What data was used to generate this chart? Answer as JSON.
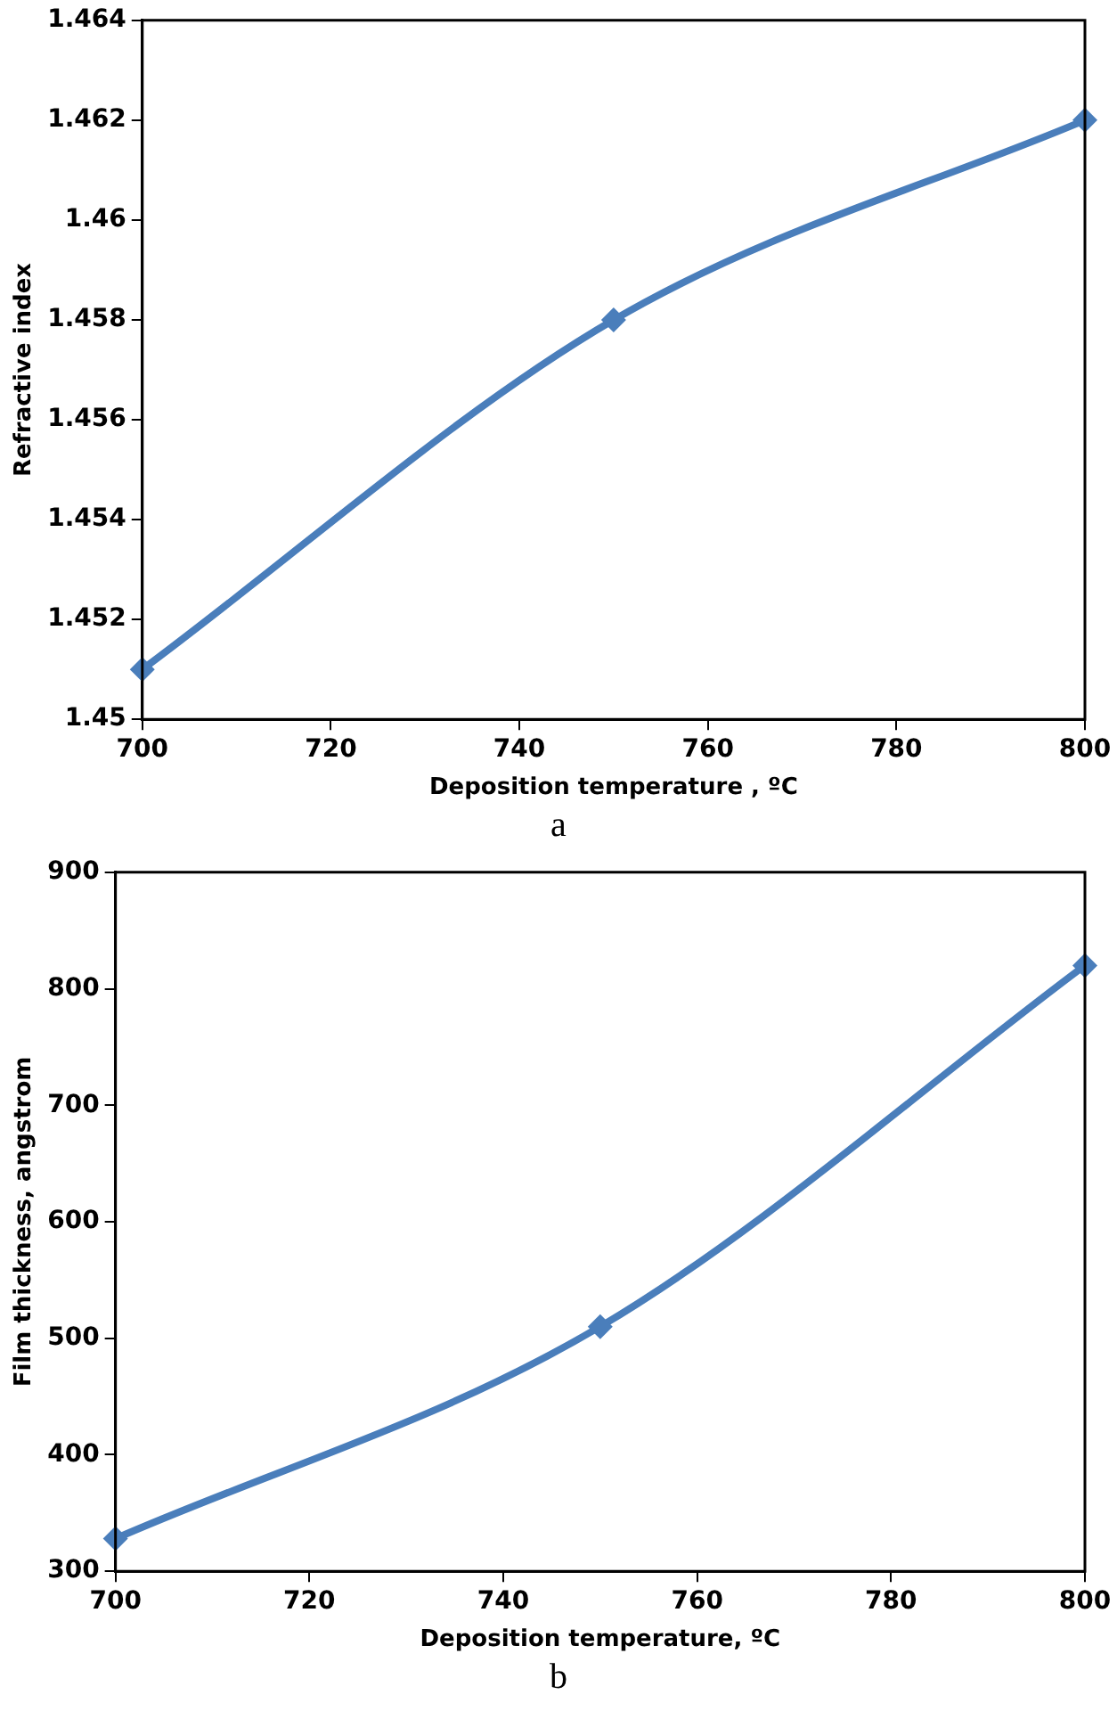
{
  "chart_data": [
    {
      "type": "line",
      "xlabel": "Deposition temperature , ºC",
      "ylabel": "Refractive index",
      "x": [
        700,
        750,
        800
      ],
      "series": [
        {
          "color": "#4a7ebb",
          "values": [
            1.451,
            1.458,
            1.462
          ]
        }
      ],
      "xlim": [
        700,
        800
      ],
      "xticks": [
        700,
        720,
        740,
        760,
        780,
        800
      ],
      "ylim": [
        1.45,
        1.464
      ],
      "yticks": [
        1.45,
        1.452,
        1.454,
        1.456,
        1.458,
        1.46,
        1.462,
        1.464
      ],
      "grid": false,
      "legend": false,
      "marker": "diamond",
      "line_style": "solid",
      "annotations": [
        "a"
      ]
    },
    {
      "type": "line",
      "xlabel": "Deposition temperature, ºC",
      "ylabel": "Film thickness, angstrom",
      "x": [
        700,
        750,
        800
      ],
      "series": [
        {
          "color": "#4a7ebb",
          "values": [
            328,
            510,
            820
          ]
        }
      ],
      "xlim": [
        700,
        800
      ],
      "xticks": [
        700,
        720,
        740,
        760,
        780,
        800
      ],
      "ylim": [
        300,
        900
      ],
      "yticks": [
        300,
        400,
        500,
        600,
        700,
        800,
        900
      ],
      "grid": false,
      "legend": false,
      "marker": "diamond",
      "line_style": "solid",
      "annotations": [
        "b"
      ]
    }
  ]
}
